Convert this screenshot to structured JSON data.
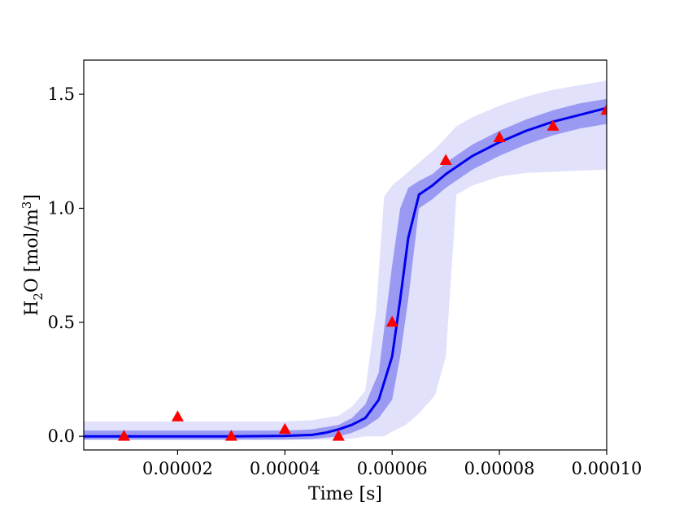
{
  "chart_data": {
    "type": "line",
    "xlabel": "Time [s]",
    "ylabel": {
      "prefix": "H",
      "sub": "2",
      "mid": "O [mol/m",
      "sup": "3",
      "suffix": "]"
    },
    "xlim": [
      2.5e-06,
      0.0001
    ],
    "ylim": [
      -0.06,
      1.65
    ],
    "x_ticks": [
      {
        "value": 2e-05,
        "label": "0.00002"
      },
      {
        "value": 4e-05,
        "label": "0.00004"
      },
      {
        "value": 6e-05,
        "label": "0.00006"
      },
      {
        "value": 8e-05,
        "label": "0.00008"
      },
      {
        "value": 0.0001,
        "label": "0.00010"
      }
    ],
    "y_ticks": [
      {
        "value": 0.0,
        "label": "0.0"
      },
      {
        "value": 0.5,
        "label": "0.5"
      },
      {
        "value": 1.0,
        "label": "1.0"
      },
      {
        "value": 1.5,
        "label": "1.5"
      }
    ],
    "grid": false,
    "colors": {
      "line": "#0000ee",
      "inner_band": "#9a9af2",
      "outer_band": "#e1e1fb",
      "markers": "#ff0000",
      "axes": "#000000"
    },
    "series": [
      {
        "kind": "line",
        "x": [
          2.5e-06,
          1e-05,
          2e-05,
          3e-05,
          4e-05,
          4.5e-05,
          4.75e-05,
          5e-05,
          5.25e-05,
          5.5e-05,
          5.75e-05,
          6e-05,
          6.15e-05,
          6.3e-05,
          6.5e-05,
          6.75e-05,
          7e-05,
          7.5e-05,
          8e-05,
          8.5e-05,
          9e-05,
          9.5e-05,
          0.0001
        ],
        "y": [
          0.0,
          0.0,
          0.0,
          0.0,
          0.002,
          0.006,
          0.015,
          0.03,
          0.05,
          0.08,
          0.16,
          0.35,
          0.6,
          0.87,
          1.06,
          1.1,
          1.15,
          1.23,
          1.29,
          1.34,
          1.38,
          1.41,
          1.44
        ]
      },
      {
        "kind": "band",
        "x": [
          2.5e-06,
          4e-05,
          4.5e-05,
          5e-05,
          5.25e-05,
          5.5e-05,
          5.75e-05,
          6e-05,
          6.15e-05,
          6.3e-05,
          6.5e-05,
          6.75e-05,
          7e-05,
          7.5e-05,
          8e-05,
          8.5e-05,
          9e-05,
          9.5e-05,
          0.0001
        ],
        "lower": [
          -0.015,
          -0.015,
          -0.012,
          0.0,
          0.015,
          0.04,
          0.08,
          0.16,
          0.35,
          0.6,
          1.0,
          1.04,
          1.09,
          1.17,
          1.23,
          1.28,
          1.32,
          1.35,
          1.37
        ],
        "upper": [
          0.025,
          0.025,
          0.03,
          0.05,
          0.08,
          0.14,
          0.28,
          0.75,
          1.0,
          1.09,
          1.12,
          1.15,
          1.2,
          1.28,
          1.34,
          1.39,
          1.43,
          1.46,
          1.48
        ]
      },
      {
        "kind": "band",
        "x": [
          2.5e-06,
          4e-05,
          4.5e-05,
          5e-05,
          5.25e-05,
          5.5e-05,
          5.7e-05,
          5.85e-05,
          6e-05,
          6.25e-05,
          6.5e-05,
          6.8e-05,
          7e-05,
          7.2e-05,
          7.5e-05,
          8e-05,
          8.5e-05,
          9e-05,
          9.5e-05,
          0.0001
        ],
        "lower": [
          -0.015,
          -0.015,
          -0.015,
          -0.015,
          -0.01,
          0.0,
          0.0,
          0.0,
          0.02,
          0.05,
          0.1,
          0.18,
          0.35,
          1.06,
          1.1,
          1.14,
          1.155,
          1.16,
          1.165,
          1.17
        ],
        "upper": [
          0.065,
          0.065,
          0.07,
          0.09,
          0.13,
          0.2,
          0.55,
          1.05,
          1.1,
          1.15,
          1.2,
          1.26,
          1.31,
          1.36,
          1.4,
          1.45,
          1.49,
          1.52,
          1.54,
          1.56
        ]
      },
      {
        "kind": "scatter",
        "marker": "triangle",
        "x": [
          1e-05,
          2e-05,
          3e-05,
          4e-05,
          5e-05,
          6e-05,
          7e-05,
          8e-05,
          9e-05,
          0.0001
        ],
        "y": [
          0.0,
          0.085,
          0.0,
          0.03,
          0.0,
          0.5,
          1.21,
          1.31,
          1.36,
          1.43
        ]
      }
    ]
  }
}
